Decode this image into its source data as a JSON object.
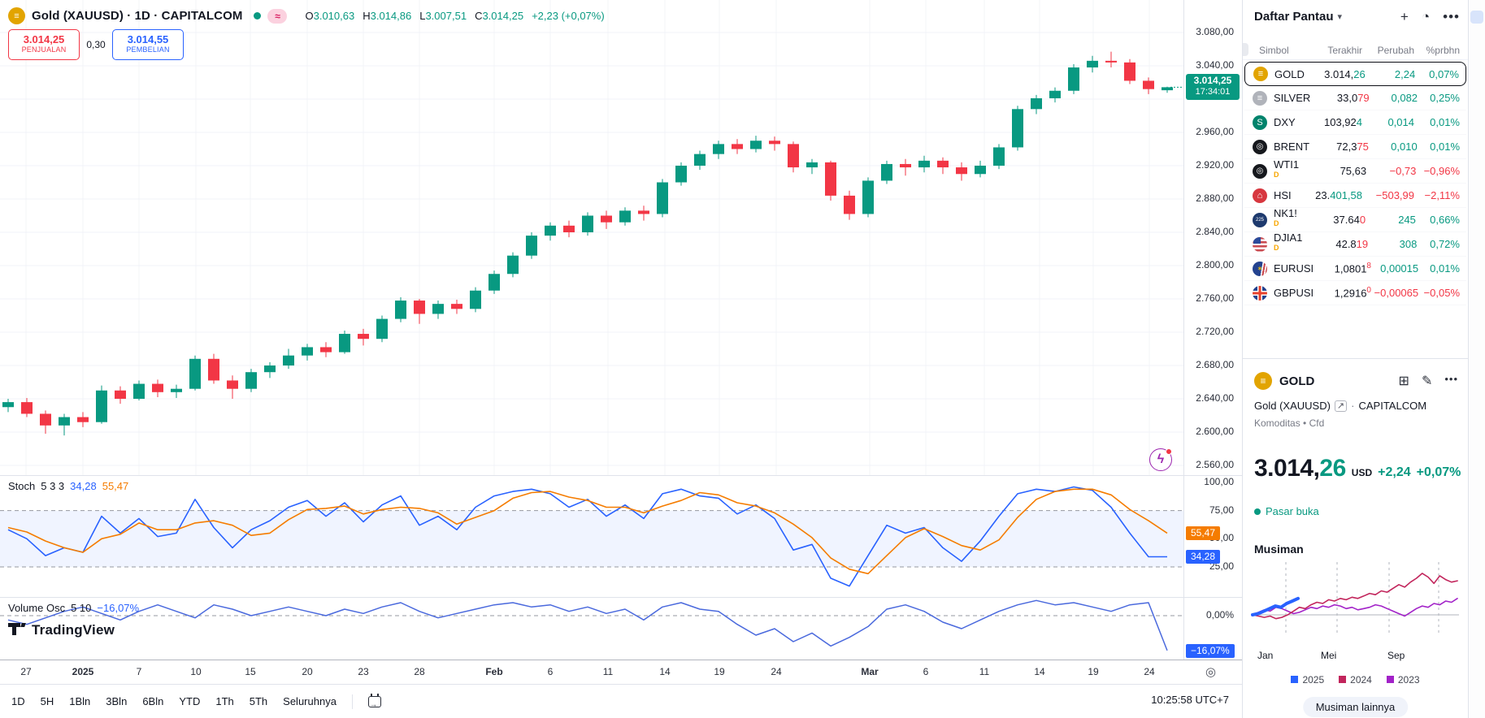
{
  "colors": {
    "up": "#089981",
    "down": "#F23645",
    "accent": "#2962FF",
    "orange": "#F57C00",
    "grid": "#F0F3FA"
  },
  "header": {
    "symbol_line": "Gold (XAUUSD) · 1D · CAPITALCOM",
    "approx_badge": "≈",
    "o_label": "O",
    "o": "3.010,63",
    "h_label": "H",
    "h": "3.014,86",
    "l_label": "L",
    "l": "3.007,51",
    "c_label": "C",
    "c": "3.014,25",
    "change": "+2,23 (+0,07%)"
  },
  "trade_panel": {
    "sell_price": "3.014,25",
    "sell_label": "PENJUALAN",
    "spread": "0,30",
    "buy_price": "3.014,55",
    "buy_label": "PEMBELIAN"
  },
  "price_axis": {
    "current": {
      "price": "3.014,25",
      "countdown": "17:34:01"
    }
  },
  "stoch": {
    "name": "Stoch",
    "params": "5 3 3",
    "k": "34,28",
    "d": "55,47",
    "axis_labels": [
      [
        "100,00",
        100
      ],
      [
        "75,00",
        75
      ],
      [
        "50,00",
        50
      ],
      [
        "25,00",
        25
      ]
    ]
  },
  "volume_osc": {
    "name": "Volume Osc",
    "params": "5 10",
    "value": "−16,07%",
    "zero": "0,00%"
  },
  "toolbar": {
    "ranges": [
      "1D",
      "5H",
      "1Bln",
      "3Bln",
      "6Bln",
      "YTD",
      "1Th",
      "5Th",
      "Seluruhnya"
    ],
    "clock": "10:25:58 UTC+7"
  },
  "chart_data": [
    {
      "type": "candlestick",
      "title": "Gold (XAUUSD) 1D CAPITALCOM",
      "price_gridlines": [
        3080,
        3040,
        3000,
        2960,
        2920,
        2880,
        2840,
        2800,
        2760,
        2720,
        2680,
        2640,
        2600,
        2560
      ],
      "price_ticks": [
        [
          "3.080,00",
          3080
        ],
        [
          "3.040,00",
          3040
        ],
        [
          "2.960,00",
          2960
        ],
        [
          "2.920,00",
          2920
        ],
        [
          "2.880,00",
          2880
        ],
        [
          "2.840,00",
          2840
        ],
        [
          "2.800,00",
          2800
        ],
        [
          "2.760,00",
          2760
        ],
        [
          "2.720,00",
          2720
        ],
        [
          "2.680,00",
          2680
        ],
        [
          "2.640,00",
          2640
        ],
        [
          "2.600,00",
          2600
        ],
        [
          "2.560,00",
          2560
        ]
      ],
      "time_labels": [
        [
          "27",
          32,
          0
        ],
        [
          "2025",
          102,
          1
        ],
        [
          "7",
          171,
          0
        ],
        [
          "10",
          241,
          0
        ],
        [
          "15",
          308,
          0
        ],
        [
          "20",
          378,
          0
        ],
        [
          "23",
          447,
          0
        ],
        [
          "28",
          516,
          0
        ],
        [
          "Feb",
          608,
          1
        ],
        [
          "6",
          677,
          0
        ],
        [
          "11",
          748,
          0
        ],
        [
          "14",
          818,
          0
        ],
        [
          "19",
          885,
          0
        ],
        [
          "24",
          955,
          0
        ],
        [
          "Mar",
          1070,
          1
        ],
        [
          "6",
          1139,
          0
        ],
        [
          "11",
          1211,
          0
        ],
        [
          "14",
          1279,
          0
        ],
        [
          "19",
          1345,
          0
        ],
        [
          "24",
          1414,
          0
        ]
      ],
      "current_price": 3014.25,
      "candles": [
        [
          2630,
          2640,
          2624,
          2636
        ],
        [
          2636,
          2641,
          2618,
          2622
        ],
        [
          2622,
          2626,
          2598,
          2608
        ],
        [
          2608,
          2622,
          2596,
          2618
        ],
        [
          2618,
          2624,
          2606,
          2612
        ],
        [
          2612,
          2656,
          2610,
          2650
        ],
        [
          2650,
          2655,
          2634,
          2640
        ],
        [
          2640,
          2662,
          2638,
          2658
        ],
        [
          2658,
          2663,
          2642,
          2648
        ],
        [
          2648,
          2657,
          2641,
          2652
        ],
        [
          2652,
          2692,
          2650,
          2688
        ],
        [
          2688,
          2694,
          2658,
          2662
        ],
        [
          2662,
          2668,
          2640,
          2652
        ],
        [
          2652,
          2676,
          2648,
          2672
        ],
        [
          2672,
          2684,
          2665,
          2680
        ],
        [
          2680,
          2700,
          2676,
          2692
        ],
        [
          2692,
          2706,
          2686,
          2702
        ],
        [
          2702,
          2708,
          2690,
          2696
        ],
        [
          2696,
          2722,
          2694,
          2718
        ],
        [
          2718,
          2724,
          2704,
          2712
        ],
        [
          2712,
          2740,
          2708,
          2736
        ],
        [
          2736,
          2762,
          2732,
          2758
        ],
        [
          2758,
          2760,
          2730,
          2742
        ],
        [
          2742,
          2758,
          2736,
          2754
        ],
        [
          2754,
          2759,
          2742,
          2748
        ],
        [
          2748,
          2774,
          2744,
          2770
        ],
        [
          2770,
          2794,
          2766,
          2790
        ],
        [
          2790,
          2816,
          2786,
          2812
        ],
        [
          2812,
          2840,
          2808,
          2836
        ],
        [
          2836,
          2852,
          2830,
          2848
        ],
        [
          2848,
          2854,
          2834,
          2840
        ],
        [
          2840,
          2864,
          2836,
          2860
        ],
        [
          2860,
          2866,
          2844,
          2852
        ],
        [
          2852,
          2870,
          2848,
          2866
        ],
        [
          2866,
          2872,
          2854,
          2862
        ],
        [
          2862,
          2904,
          2858,
          2900
        ],
        [
          2900,
          2924,
          2896,
          2920
        ],
        [
          2920,
          2938,
          2915,
          2934
        ],
        [
          2934,
          2950,
          2928,
          2946
        ],
        [
          2946,
          2952,
          2934,
          2940
        ],
        [
          2940,
          2956,
          2936,
          2950
        ],
        [
          2950,
          2955,
          2938,
          2946
        ],
        [
          2946,
          2949,
          2912,
          2918
        ],
        [
          2918,
          2928,
          2910,
          2924
        ],
        [
          2924,
          2926,
          2878,
          2884
        ],
        [
          2884,
          2890,
          2855,
          2862
        ],
        [
          2862,
          2906,
          2858,
          2902
        ],
        [
          2902,
          2926,
          2898,
          2922
        ],
        [
          2922,
          2928,
          2908,
          2918
        ],
        [
          2918,
          2932,
          2912,
          2926
        ],
        [
          2926,
          2930,
          2910,
          2918
        ],
        [
          2918,
          2924,
          2902,
          2910
        ],
        [
          2910,
          2926,
          2906,
          2920
        ],
        [
          2920,
          2946,
          2916,
          2942
        ],
        [
          2942,
          2992,
          2938,
          2988
        ],
        [
          2988,
          3005,
          2982,
          3001
        ],
        [
          3001,
          3014,
          2996,
          3010
        ],
        [
          3010,
          3042,
          3006,
          3038
        ],
        [
          3038,
          3052,
          3032,
          3046
        ],
        [
          3046,
          3057,
          3038,
          3044
        ],
        [
          3044,
          3048,
          3018,
          3022
        ],
        [
          3022,
          3026,
          3006,
          3012
        ],
        [
          3010.63,
          3014.86,
          3007.51,
          3014.25
        ]
      ]
    },
    {
      "type": "line",
      "title": "Stochastic 5 3 3",
      "range": [
        0,
        100
      ],
      "levels": [
        75,
        25
      ],
      "series": [
        {
          "name": "%K",
          "color": "#2962FF",
          "last_label": "34,28",
          "values": [
            58,
            50,
            35,
            42,
            38,
            70,
            55,
            68,
            52,
            55,
            85,
            60,
            42,
            58,
            66,
            78,
            84,
            70,
            82,
            65,
            80,
            88,
            62,
            70,
            58,
            78,
            88,
            92,
            94,
            90,
            78,
            85,
            70,
            80,
            68,
            90,
            94,
            88,
            86,
            72,
            80,
            68,
            40,
            45,
            15,
            8,
            35,
            62,
            55,
            60,
            42,
            30,
            48,
            70,
            90,
            94,
            92,
            96,
            93,
            78,
            55,
            34,
            34
          ]
        },
        {
          "name": "%D",
          "color": "#F57C00",
          "last_label": "55,47",
          "values": [
            60,
            56,
            48,
            42,
            38,
            50,
            54,
            64,
            58,
            58,
            64,
            66,
            62,
            53,
            55,
            67,
            76,
            77,
            79,
            72,
            76,
            78,
            77,
            73,
            63,
            69,
            75,
            86,
            91,
            92,
            87,
            84,
            78,
            78,
            73,
            79,
            84,
            91,
            89,
            82,
            79,
            73,
            63,
            51,
            33,
            23,
            19,
            35,
            51,
            59,
            52,
            44,
            40,
            49,
            69,
            85,
            92,
            94,
            94,
            89,
            76,
            66,
            55
          ]
        }
      ]
    },
    {
      "type": "line",
      "title": "Volume Osc 5 10",
      "zero_label": "0,00%",
      "last_label": "−16,07%",
      "series": [
        {
          "name": "osc",
          "color": "#4A69DD",
          "values": [
            -2,
            -4,
            -1,
            2,
            4,
            1,
            -2,
            2,
            5,
            2,
            -1,
            5,
            3,
            0,
            2,
            4,
            2,
            0,
            3,
            1,
            4,
            6,
            2,
            -1,
            1,
            3,
            5,
            6,
            4,
            5,
            2,
            4,
            1,
            3,
            -2,
            4,
            6,
            3,
            2,
            -4,
            -9,
            -6,
            -12,
            -8,
            -14,
            -10,
            -5,
            3,
            5,
            2,
            -3,
            -6,
            -2,
            2,
            5,
            7,
            5,
            6,
            4,
            2,
            5,
            6,
            -16.07
          ]
        }
      ]
    },
    {
      "type": "line",
      "title": "Musiman",
      "x_labels": [
        "Jan",
        "Mei",
        "Sep"
      ],
      "series": [
        {
          "name": "2025",
          "color": "#2962FF",
          "values": [
            0,
            1,
            3,
            5,
            7,
            6,
            9,
            11,
            13
          ]
        },
        {
          "name": "2024",
          "color": "#C2255C",
          "values": [
            0,
            -1,
            -2,
            -1,
            -3,
            -2,
            0,
            3,
            6,
            5,
            8,
            10,
            9,
            12,
            11,
            13,
            12,
            14,
            13,
            15,
            17,
            16,
            19,
            18,
            21,
            24,
            22,
            26,
            29,
            33,
            30,
            25,
            31,
            28,
            26,
            27
          ]
        },
        {
          "name": "2023",
          "color": "#A222C8",
          "values": [
            0,
            2,
            4,
            3,
            6,
            5,
            3,
            1,
            2,
            4,
            6,
            5,
            7,
            6,
            8,
            7,
            5,
            6,
            4,
            5,
            6,
            8,
            7,
            5,
            3,
            1,
            -1,
            2,
            5,
            7,
            6,
            9,
            8,
            11,
            10,
            13
          ]
        }
      ]
    }
  ],
  "watchlist": {
    "title": "Daftar Pantau",
    "columns": [
      "Simbol",
      "Terakhir",
      "Perubah",
      "%prbhn"
    ],
    "rows": [
      {
        "sym": "GOLD",
        "sup": "",
        "icon": {
          "bg": "#E2A400",
          "glyph": "≡",
          "size": 11
        },
        "pre": "3.014,",
        "suf": "26",
        "sufc": "up",
        "supsuf": false,
        "chg": "2,24",
        "chgc": "up",
        "pct": "0,07%",
        "pctc": "up",
        "selected": true
      },
      {
        "sym": "SILVER",
        "sup": "",
        "icon": {
          "bg": "#B0B3BA",
          "glyph": "≡",
          "size": 11
        },
        "pre": "33,0",
        "suf": "79",
        "sufc": "down",
        "supsuf": false,
        "chg": "0,082",
        "chgc": "up",
        "pct": "0,25%",
        "pctc": "up",
        "selected": false
      },
      {
        "sym": "DXY",
        "sup": "",
        "icon": {
          "bg": "#00836C",
          "glyph": "S",
          "size": 11
        },
        "pre": "103,92",
        "suf": "4",
        "sufc": "up",
        "supsuf": false,
        "chg": "0,014",
        "chgc": "up",
        "pct": "0,01%",
        "pctc": "up",
        "selected": false
      },
      {
        "sym": "BRENT",
        "sup": "",
        "icon": {
          "bg": "#16181D",
          "glyph": "◎",
          "size": 10
        },
        "pre": "72,3",
        "suf": "75",
        "sufc": "down",
        "supsuf": false,
        "chg": "0,010",
        "chgc": "up",
        "pct": "0,01%",
        "pctc": "up",
        "selected": false
      },
      {
        "sym": "WTI1",
        "sup": "D",
        "icon": {
          "bg": "#16181D",
          "glyph": "◎",
          "size": 10
        },
        "pre": "75,63",
        "suf": "",
        "sufc": "up",
        "supsuf": false,
        "chg": "−0,73",
        "chgc": "down",
        "pct": "−0,96%",
        "pctc": "down",
        "selected": false
      },
      {
        "sym": "HSI",
        "sup": "",
        "icon": {
          "bg": "#D7373F",
          "glyph": "⌂",
          "size": 11
        },
        "pre": "23.",
        "suf": "401,58",
        "sufc": "up",
        "supsuf": false,
        "chg": "−503,99",
        "chgc": "down",
        "pct": "−2,11%",
        "pctc": "down",
        "selected": false
      },
      {
        "sym": "NK1!",
        "sup": "D",
        "icon": {
          "bg": "#1E3A6E",
          "glyph": "225",
          "size": 6
        },
        "pre": "37.64",
        "suf": "0",
        "sufc": "down",
        "supsuf": false,
        "chg": "245",
        "chgc": "up",
        "pct": "0,66%",
        "pctc": "up",
        "selected": false
      },
      {
        "sym": "DJIA1",
        "sup": "D",
        "icon": {
          "bg": "",
          "style": "repeating-linear-gradient(180deg,#C94A50 0 2.5px,#FFF 2.5px 5px)",
          "glyph": "",
          "size": 0,
          "corner": "#2B4B9B"
        },
        "pre": "42.8",
        "suf": "19",
        "sufc": "down",
        "supsuf": false,
        "chg": "308",
        "chgc": "up",
        "pct": "0,72%",
        "pctc": "up",
        "selected": false
      },
      {
        "sym": "EURUSI",
        "sup": "",
        "icon": {
          "bg": "",
          "style": "linear-gradient(100deg,#24438F 0 60%,#FFF 60% 68%,#C94A50 68% 78%,#FFF 78% 86%,#C94A50 86%)",
          "glyph": "∗",
          "size": 8,
          "glyphColor": "#FFCC00"
        },
        "pre": "1,0801",
        "suf": "8",
        "sufc": "down",
        "supsuf": true,
        "chg": "0,00015",
        "chgc": "up",
        "pct": "0,01%",
        "pctc": "up",
        "selected": false
      },
      {
        "sym": "GBPUSI",
        "sup": "",
        "icon": {
          "bg": "",
          "style": "linear-gradient(90deg,transparent 42%,#E8412C 42% 58%,transparent 58%),linear-gradient(0deg,transparent 42%,#E8412C 42% 58%,transparent 58%),linear-gradient(90deg,transparent 33%,#FFF 33% 67%,transparent 67%),linear-gradient(0deg,transparent 33%,#FFF 33% 67%,transparent 67%),#24438F",
          "glyph": "",
          "size": 0
        },
        "pre": "1,2916",
        "suf": "0",
        "sufc": "down",
        "supsuf": true,
        "chg": "−0,00065",
        "chgc": "down",
        "pct": "−0,05%",
        "pctc": "down",
        "selected": false
      }
    ]
  },
  "symbol_panel": {
    "title": "GOLD",
    "name": "Gold (XAUUSD)",
    "exchange": "CAPITALCOM",
    "meta": "Komoditas • Cfd",
    "price_main": "3.014,",
    "price_frac": "26",
    "currency": "USD",
    "change": "+2,24",
    "pct": "+0,07%",
    "status": "Pasar buka",
    "season_title": "Musiman",
    "legend": [
      {
        "label": "2025",
        "color": "#2962FF"
      },
      {
        "label": "2024",
        "color": "#C2255C"
      },
      {
        "label": "2023",
        "color": "#A222C8"
      }
    ],
    "x_labels": [
      "Jan",
      "Mei",
      "Sep"
    ],
    "more": "Musiman lainnya"
  }
}
